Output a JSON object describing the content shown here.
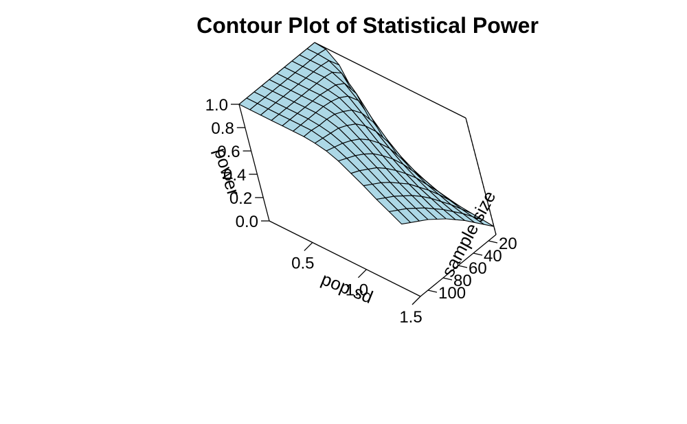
{
  "chart_data": {
    "type": "surface",
    "title": "Contour Plot of Statistical Power",
    "x_axis": {
      "label": "pop sd",
      "range": [
        0.1,
        1.5
      ],
      "ticks": [
        0.5,
        1.0,
        1.5
      ],
      "tick_labels": [
        "0.5",
        "1.0",
        "1.5"
      ]
    },
    "y_axis": {
      "label": "sample size",
      "range": [
        10,
        110
      ],
      "ticks": [
        20,
        40,
        60,
        80,
        100
      ],
      "tick_labels": [
        "20",
        "40",
        "60",
        "80",
        "100"
      ]
    },
    "z_axis": {
      "label": "power",
      "range": [
        0.0,
        1.0
      ],
      "ticks": [
        0.0,
        0.2,
        0.4,
        0.6,
        0.8,
        1.0
      ],
      "tick_labels": [
        "0.0",
        "0.2",
        "0.4",
        "0.6",
        "0.8",
        "1.0"
      ]
    },
    "surface": {
      "sd_values": [
        0.1,
        0.2,
        0.3,
        0.4,
        0.5,
        0.6,
        0.7,
        0.8,
        0.9,
        1.0,
        1.1,
        1.2,
        1.3,
        1.4,
        1.5
      ],
      "n_values": [
        10,
        20,
        30,
        40,
        50,
        60,
        70,
        80,
        90,
        100,
        110
      ],
      "power": [
        [
          1.0,
          1.0,
          1.0,
          1.0,
          1.0,
          1.0,
          1.0,
          1.0,
          1.0,
          1.0,
          1.0
        ],
        [
          0.99,
          1.0,
          1.0,
          1.0,
          1.0,
          1.0,
          1.0,
          1.0,
          1.0,
          1.0,
          1.0
        ],
        [
          0.9,
          0.99,
          1.0,
          1.0,
          1.0,
          1.0,
          1.0,
          1.0,
          1.0,
          1.0,
          1.0
        ],
        [
          0.65,
          0.93,
          0.99,
          1.0,
          1.0,
          1.0,
          1.0,
          1.0,
          1.0,
          1.0,
          1.0
        ],
        [
          0.45,
          0.8,
          0.94,
          0.98,
          0.99,
          1.0,
          1.0,
          1.0,
          1.0,
          1.0,
          1.0
        ],
        [
          0.33,
          0.63,
          0.84,
          0.93,
          0.97,
          0.99,
          1.0,
          1.0,
          1.0,
          1.0,
          1.0
        ],
        [
          0.25,
          0.5,
          0.7,
          0.83,
          0.91,
          0.95,
          0.98,
          0.99,
          0.99,
          1.0,
          1.0
        ],
        [
          0.2,
          0.4,
          0.58,
          0.72,
          0.82,
          0.89,
          0.93,
          0.96,
          0.97,
          0.98,
          0.99
        ],
        [
          0.16,
          0.33,
          0.48,
          0.62,
          0.72,
          0.8,
          0.86,
          0.9,
          0.93,
          0.95,
          0.97
        ],
        [
          0.14,
          0.28,
          0.41,
          0.53,
          0.63,
          0.71,
          0.78,
          0.83,
          0.87,
          0.9,
          0.93
        ],
        [
          0.12,
          0.24,
          0.35,
          0.46,
          0.55,
          0.63,
          0.7,
          0.76,
          0.8,
          0.84,
          0.87
        ],
        [
          0.1,
          0.21,
          0.31,
          0.4,
          0.48,
          0.56,
          0.62,
          0.68,
          0.73,
          0.77,
          0.81
        ],
        [
          0.09,
          0.18,
          0.27,
          0.35,
          0.43,
          0.5,
          0.56,
          0.61,
          0.66,
          0.7,
          0.74
        ],
        [
          0.08,
          0.16,
          0.24,
          0.31,
          0.38,
          0.44,
          0.5,
          0.55,
          0.6,
          0.64,
          0.68
        ],
        [
          0.07,
          0.14,
          0.21,
          0.28,
          0.34,
          0.4,
          0.45,
          0.5,
          0.54,
          0.58,
          0.62
        ]
      ]
    },
    "surface_color": "#add8e6",
    "edge_color": "#000000",
    "box": true,
    "grid": false,
    "legend": "none"
  }
}
